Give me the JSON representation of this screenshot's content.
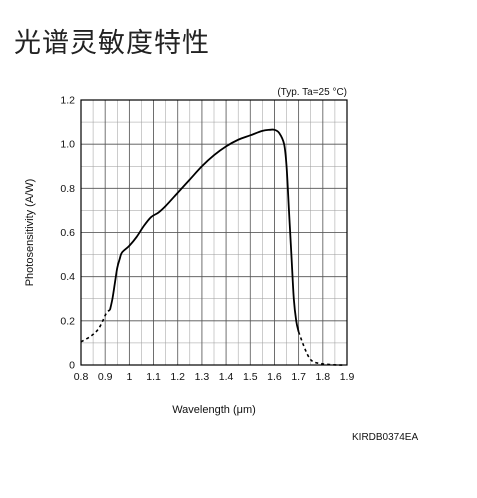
{
  "page": {
    "title": "光谱灵敏度特性",
    "doc_code": "KIRDB0374EA"
  },
  "chart_data": {
    "type": "line",
    "title": "",
    "annotation": "(Typ. Ta=25 °C)",
    "xlabel": "Wavelength (μm)",
    "ylabel": "Photosensitivity (A/W)",
    "xlim": [
      0.8,
      1.9
    ],
    "ylim": [
      0,
      1.2
    ],
    "x_ticks": [
      0.8,
      0.9,
      1.0,
      1.1,
      1.2,
      1.3,
      1.4,
      1.5,
      1.6,
      1.7,
      1.8,
      1.9
    ],
    "x_tick_labels": [
      "0.8",
      "0.9",
      "1",
      "1.1",
      "1.2",
      "1.3",
      "1.4",
      "1.5",
      "1.6",
      "1.7",
      "1.8",
      "1.9"
    ],
    "x_minor_step": 0.05,
    "y_ticks": [
      0,
      0.2,
      0.4,
      0.6,
      0.8,
      1.0,
      1.2
    ],
    "y_tick_labels": [
      "0",
      "0.2",
      "0.4",
      "0.6",
      "0.8",
      "1.0",
      "1.2"
    ],
    "y_minor_step": 0.1,
    "grid": true,
    "series": [
      {
        "style": "dashed",
        "x": [
          0.8,
          0.84,
          0.87,
          0.89,
          0.905,
          0.92
        ],
        "y": [
          0.105,
          0.13,
          0.16,
          0.2,
          0.235,
          0.25
        ]
      },
      {
        "style": "solid",
        "x": [
          0.92,
          0.93,
          0.94,
          0.95,
          0.96,
          0.97,
          1.0,
          1.03,
          1.06,
          1.09,
          1.12,
          1.15,
          1.2,
          1.25,
          1.3,
          1.35,
          1.4,
          1.45,
          1.5,
          1.55,
          1.58,
          1.6,
          1.62,
          1.64,
          1.65,
          1.66,
          1.67,
          1.68,
          1.69,
          1.7
        ],
        "y": [
          0.25,
          0.3,
          0.37,
          0.44,
          0.48,
          0.51,
          0.54,
          0.58,
          0.63,
          0.67,
          0.69,
          0.72,
          0.78,
          0.84,
          0.9,
          0.95,
          0.99,
          1.02,
          1.04,
          1.06,
          1.065,
          1.065,
          1.05,
          1.0,
          0.9,
          0.7,
          0.5,
          0.3,
          0.2,
          0.15
        ]
      },
      {
        "style": "dashed",
        "x": [
          1.7,
          1.72,
          1.74,
          1.76,
          1.8,
          1.86,
          1.89
        ],
        "y": [
          0.15,
          0.09,
          0.04,
          0.015,
          0.005,
          0.0,
          0.0
        ]
      }
    ]
  }
}
